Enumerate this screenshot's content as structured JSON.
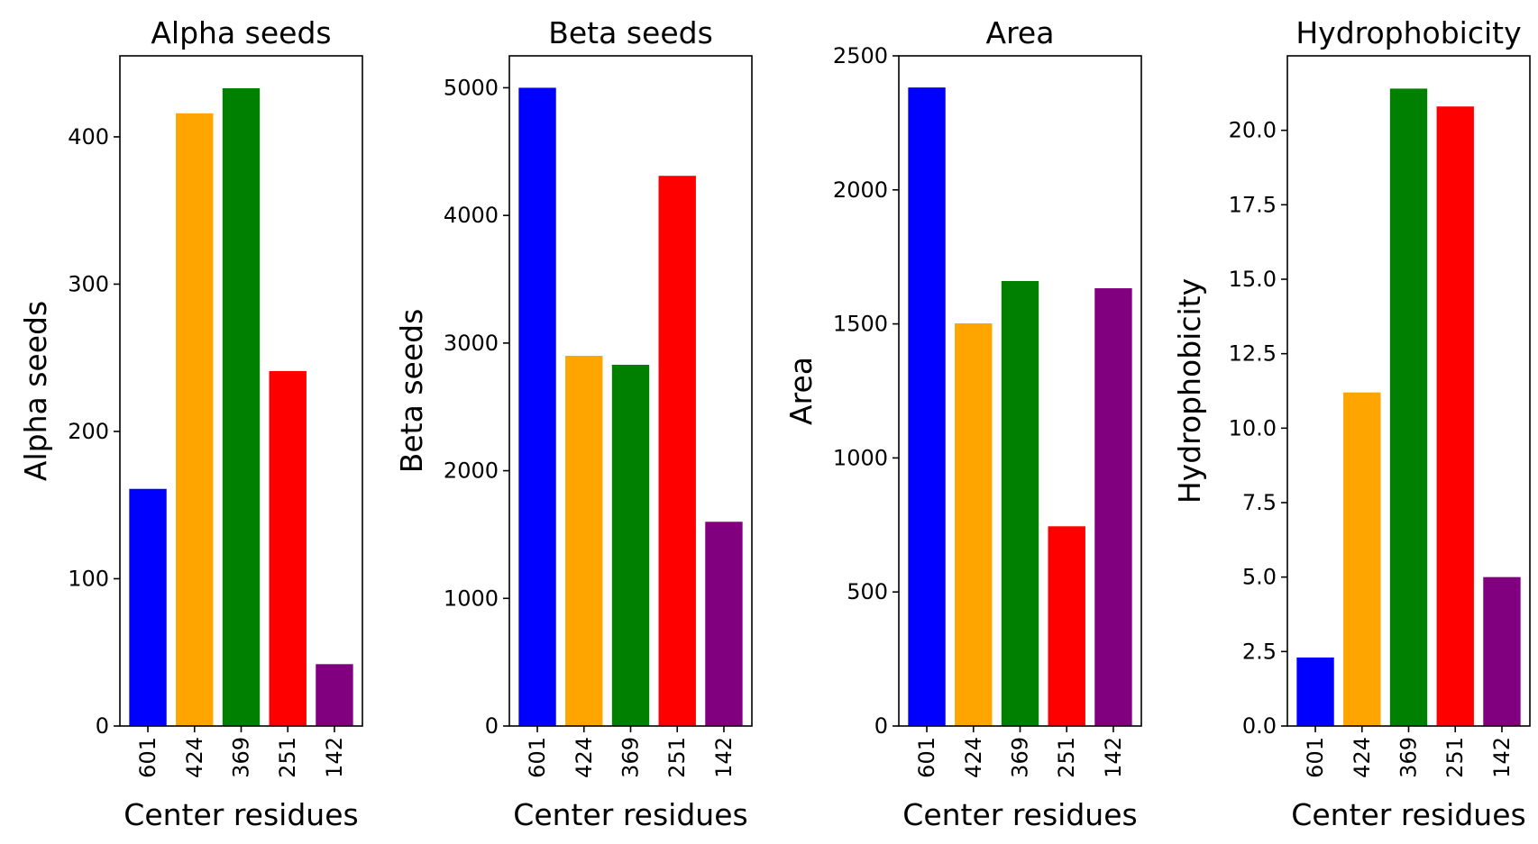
{
  "chart_data": [
    {
      "type": "bar",
      "title": "Alpha seeds",
      "xlabel": "Center residues",
      "ylabel": "Alpha seeds",
      "categories": [
        "601",
        "424",
        "369",
        "251",
        "142"
      ],
      "values": [
        161,
        416,
        433,
        241,
        42
      ],
      "colors": [
        "#0000ff",
        "#ffa500",
        "#008000",
        "#ff0000",
        "#800080"
      ],
      "ylim": [
        0,
        455
      ],
      "yticks": [
        0,
        100,
        200,
        300,
        400
      ],
      "ytick_labels": [
        "0",
        "100",
        "200",
        "300",
        "400"
      ],
      "grid": false
    },
    {
      "type": "bar",
      "title": "Beta seeds",
      "xlabel": "Center residues",
      "ylabel": "Beta seeds",
      "categories": [
        "601",
        "424",
        "369",
        "251",
        "142"
      ],
      "values": [
        5000,
        2900,
        2830,
        4310,
        1600
      ],
      "colors": [
        "#0000ff",
        "#ffa500",
        "#008000",
        "#ff0000",
        "#800080"
      ],
      "ylim": [
        0,
        5250
      ],
      "yticks": [
        0,
        1000,
        2000,
        3000,
        4000,
        5000
      ],
      "ytick_labels": [
        "0",
        "1000",
        "2000",
        "3000",
        "4000",
        "5000"
      ],
      "grid": false
    },
    {
      "type": "bar",
      "title": "Area",
      "xlabel": "Center residues",
      "ylabel": "Area",
      "categories": [
        "601",
        "424",
        "369",
        "251",
        "142"
      ],
      "values": [
        2382,
        1502,
        1660,
        745,
        1633
      ],
      "colors": [
        "#0000ff",
        "#ffa500",
        "#008000",
        "#ff0000",
        "#800080"
      ],
      "ylim": [
        0,
        2500
      ],
      "yticks": [
        0,
        500,
        1000,
        1500,
        2000,
        2500
      ],
      "ytick_labels": [
        "0",
        "500",
        "1000",
        "1500",
        "2000",
        "2500"
      ],
      "grid": false
    },
    {
      "type": "bar",
      "title": "Hydrophobicity",
      "xlabel": "Center residues",
      "ylabel": "Hydrophobicity",
      "categories": [
        "601",
        "424",
        "369",
        "251",
        "142"
      ],
      "values": [
        2.3,
        11.2,
        21.4,
        20.8,
        5.0
      ],
      "colors": [
        "#0000ff",
        "#ffa500",
        "#008000",
        "#ff0000",
        "#800080"
      ],
      "ylim": [
        0,
        22.5
      ],
      "yticks": [
        0,
        2.5,
        5,
        7.5,
        10,
        12.5,
        15,
        17.5,
        20
      ],
      "ytick_labels": [
        "0.0",
        "2.5",
        "5.0",
        "7.5",
        "10.0",
        "12.5",
        "15.0",
        "17.5",
        "20.0"
      ],
      "grid": false
    }
  ]
}
